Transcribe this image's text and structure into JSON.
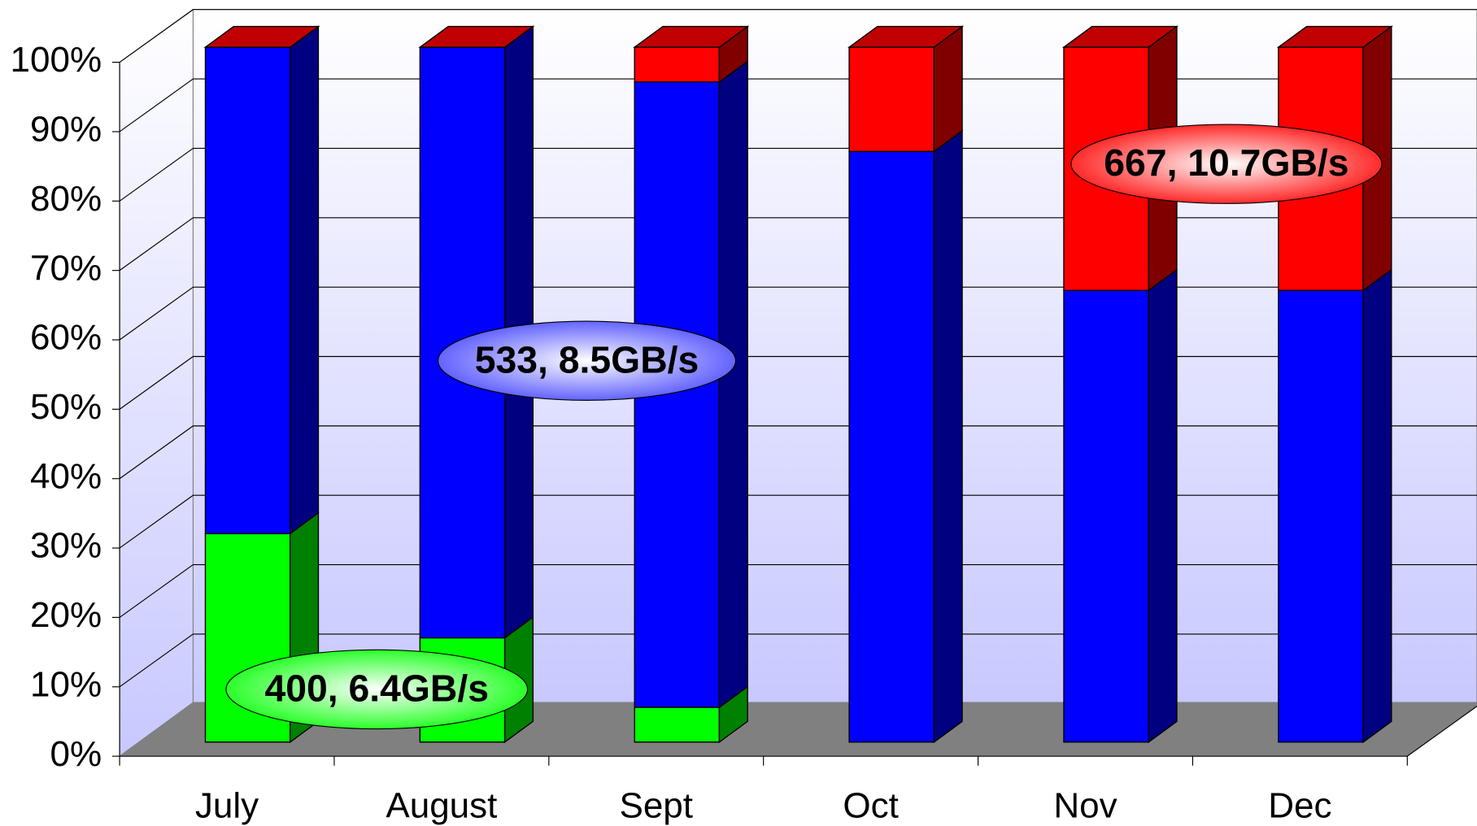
{
  "chart_data": {
    "type": "bar3d_stacked",
    "categories": [
      "July",
      "August",
      "Sept",
      "Oct",
      "Nov",
      "Dec"
    ],
    "series": [
      {
        "name": "400, 6.4GB/s",
        "color": "#00ff00",
        "values": [
          30,
          15,
          5,
          0,
          0,
          0
        ]
      },
      {
        "name": "533, 8.5GB/s",
        "color": "#0000ff",
        "values": [
          70,
          85,
          90,
          85,
          65,
          65
        ]
      },
      {
        "name": "667, 10.7GB/s",
        "color": "#ff0000",
        "values": [
          0,
          0,
          5,
          15,
          35,
          35
        ]
      }
    ],
    "ylim": [
      0,
      100
    ],
    "yticks": [
      {
        "value": 0,
        "label": "0%"
      },
      {
        "value": 10,
        "label": "10%"
      },
      {
        "value": 20,
        "label": "20%"
      },
      {
        "value": 30,
        "label": "30%"
      },
      {
        "value": 40,
        "label": "40%"
      },
      {
        "value": 50,
        "label": "50%"
      },
      {
        "value": 60,
        "label": "60%"
      },
      {
        "value": 70,
        "label": "70%"
      },
      {
        "value": 80,
        "label": "80%"
      },
      {
        "value": 90,
        "label": "90%"
      },
      {
        "value": 100,
        "label": "100%"
      }
    ],
    "grid": true
  }
}
